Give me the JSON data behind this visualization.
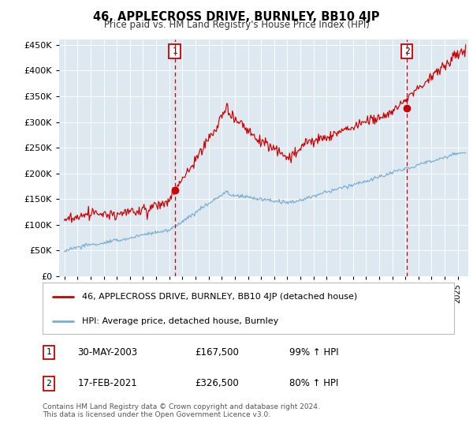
{
  "title": "46, APPLECROSS DRIVE, BURNLEY, BB10 4JP",
  "subtitle": "Price paid vs. HM Land Registry's House Price Index (HPI)",
  "legend_line1": "46, APPLECROSS DRIVE, BURNLEY, BB10 4JP (detached house)",
  "legend_line2": "HPI: Average price, detached house, Burnley",
  "annotation1_date": "30-MAY-2003",
  "annotation1_price": "£167,500",
  "annotation1_hpi": "99% ↑ HPI",
  "annotation1_year": 2003.42,
  "annotation1_value": 167500,
  "annotation2_date": "17-FEB-2021",
  "annotation2_price": "£326,500",
  "annotation2_hpi": "80% ↑ HPI",
  "annotation2_year": 2021.12,
  "annotation2_value": 326500,
  "hpi_color": "#7aadd4",
  "price_color": "#cc0000",
  "plot_bg_color": "#dde8f0",
  "ylim": [
    0,
    460000
  ],
  "yticks": [
    0,
    50000,
    100000,
    150000,
    200000,
    250000,
    300000,
    350000,
    400000,
    450000
  ],
  "footer": "Contains HM Land Registry data © Crown copyright and database right 2024.\nThis data is licensed under the Open Government Licence v3.0."
}
